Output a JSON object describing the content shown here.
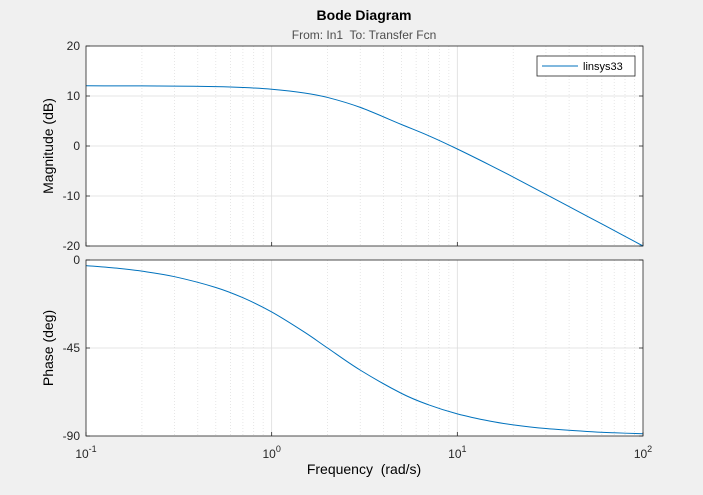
{
  "chart_data": {
    "type": "line",
    "title": "Bode Diagram",
    "subtitle": "From: In1  To: Transfer Fcn",
    "xlabel": "Frequency  (rad/s)",
    "xscale": "log",
    "xlim": [
      0.1,
      100
    ],
    "x_tick_labels": [
      {
        "base": "10",
        "exp": "-1",
        "value": 0.1
      },
      {
        "base": "10",
        "exp": "0",
        "value": 1
      },
      {
        "base": "10",
        "exp": "1",
        "value": 10
      },
      {
        "base": "10",
        "exp": "2",
        "value": 100
      }
    ],
    "grid": true,
    "legend": {
      "location": "top-right",
      "entries": [
        "linsys33"
      ]
    },
    "series_color": "#0072bd",
    "subplots": [
      {
        "ylabel": "Magnitude (dB)",
        "ylim": [
          -20,
          20
        ],
        "yticks": [
          20,
          10,
          0,
          -10,
          -20
        ],
        "series": [
          {
            "name": "linsys33",
            "x": [
              0.1,
              0.15,
              0.2,
              0.3,
              0.5,
              0.7,
              1,
              1.5,
              2,
              3,
              5,
              7,
              10,
              15,
              20,
              30,
              50,
              70,
              100
            ],
            "y": [
              12.04,
              12.03,
              12.02,
              11.98,
              11.87,
              11.7,
              11.35,
              10.61,
              9.71,
              7.72,
              4.3,
              2.06,
              -0.6,
              -3.83,
              -6.21,
              -9.66,
              -14.03,
              -16.91,
              -20.0
            ]
          }
        ]
      },
      {
        "ylabel": "Phase (deg)",
        "ylim": [
          -90,
          0
        ],
        "yticks": [
          0,
          -45,
          -90
        ],
        "series": [
          {
            "name": "linsys33",
            "x": [
              0.1,
              0.15,
              0.2,
              0.3,
              0.5,
              0.7,
              1,
              1.5,
              2,
              3,
              5,
              7,
              10,
              15,
              20,
              30,
              50,
              70,
              100
            ],
            "y": [
              -2.86,
              -4.29,
              -5.71,
              -8.53,
              -14.04,
              -19.29,
              -26.57,
              -36.87,
              -45.0,
              -56.31,
              -68.2,
              -74.05,
              -78.69,
              -82.41,
              -84.29,
              -86.19,
              -87.71,
              -88.36,
              -88.85
            ]
          }
        ]
      }
    ]
  }
}
